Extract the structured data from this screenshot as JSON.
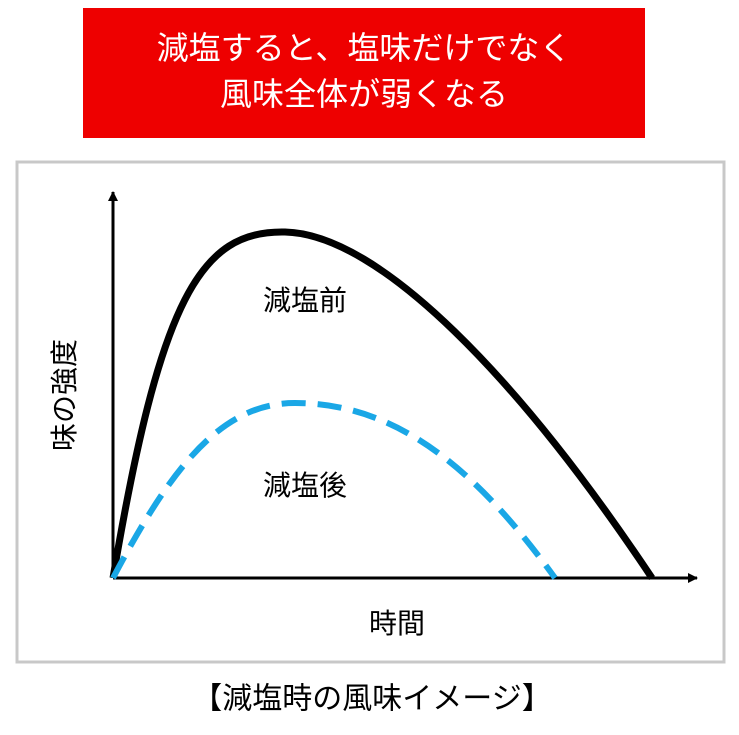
{
  "header": {
    "title_lines": [
      "減塩すると、塩味だけでなく",
      "風味全体が弱くなる"
    ]
  },
  "diagram": {
    "y_axis_label": "味の強度",
    "x_axis_label": "時間",
    "curves": [
      {
        "label": "減塩前"
      },
      {
        "label": "減塩後"
      }
    ]
  },
  "caption": "【減塩時の風味イメージ】"
}
